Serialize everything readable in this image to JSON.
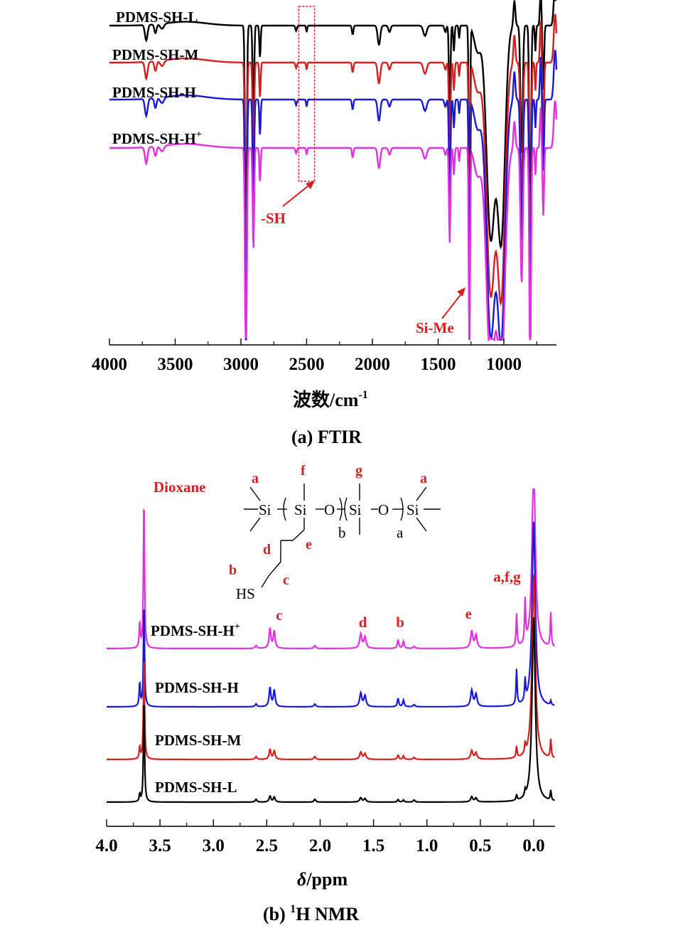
{
  "chart_data": [
    {
      "type": "line",
      "caption": "(a) FTIR",
      "xlabel": "波数/cm",
      "xlabel_sup": "-1",
      "xlim": [
        4000,
        600
      ],
      "x_ticks": [
        "4000",
        "3500",
        "3000",
        "2500",
        "2000",
        "1500",
        "1000"
      ],
      "x_tick_values": [
        4000,
        3500,
        3000,
        2500,
        2000,
        1500,
        1000
      ],
      "highlight_box": {
        "x_from": 2560,
        "x_to": 2440
      },
      "annotations": [
        {
          "label": "-SH",
          "color": "#d42020"
        },
        {
          "label": "Si-Me",
          "color": "#d42020"
        }
      ],
      "series": [
        {
          "name": "PDMS-SH-L",
          "color": "#000000",
          "offset": 0
        },
        {
          "name": "PDMS-SH-M",
          "color": "#d42020",
          "offset": 52
        },
        {
          "name": "PDMS-SH-H",
          "color": "#1a1ad4",
          "offset": 100
        },
        {
          "name": "PDMS-SH-H",
          "sup": "+",
          "color": "#e030e0",
          "offset": 170
        }
      ],
      "offsets_note": "vertical offsets are in transmittance units (arbitrary)"
    },
    {
      "type": "line",
      "caption_pre": "(b) ",
      "caption_sup": "1",
      "caption_post": "H NMR",
      "xlabel_italic": "δ",
      "xlabel_rest": "/ppm",
      "xlim": [
        4.0,
        -0.2
      ],
      "x_ticks": [
        "4.0",
        "3.5",
        "3.0",
        "2.5",
        "2.0",
        "1.5",
        "1.0",
        "0.5",
        "0.0"
      ],
      "x_tick_values": [
        4.0,
        3.5,
        3.0,
        2.5,
        2.0,
        1.5,
        1.0,
        0.5,
        0.0
      ],
      "solvent_label": "Dioxane",
      "peak_labels": [
        {
          "label": "c",
          "ppm": 2.45
        },
        {
          "label": "d",
          "ppm": 1.6
        },
        {
          "label": "b",
          "ppm": 1.25
        },
        {
          "label": "e",
          "ppm": 0.57
        },
        {
          "label": "a,f,g",
          "ppm": 0.05
        }
      ],
      "structure": {
        "atoms": [
          "Si",
          "Si",
          "O",
          "Si",
          "O",
          "Si",
          "HS"
        ],
        "subscripts": [
          "b",
          "a"
        ],
        "site_labels": [
          "a",
          "f",
          "g",
          "a",
          "d",
          "e",
          "b",
          "c"
        ]
      },
      "series": [
        {
          "name": "PDMS-SH-H",
          "sup": "+",
          "color": "#e030e0"
        },
        {
          "name": "PDMS-SH-H",
          "color": "#1a1ad4"
        },
        {
          "name": "PDMS-SH-M",
          "color": "#d42020"
        },
        {
          "name": "PDMS-SH-L",
          "color": "#000000"
        }
      ]
    }
  ]
}
